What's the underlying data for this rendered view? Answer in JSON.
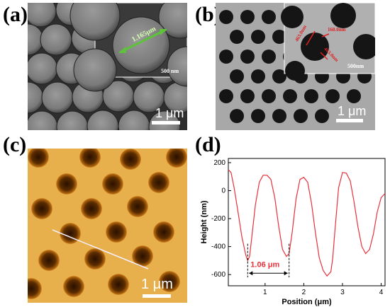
{
  "panels": {
    "a": {
      "letter": "(a)",
      "scalebar": "1 μm",
      "inset_scalebar": "500 nm",
      "diameter_label": "1.165μm"
    },
    "b": {
      "letter": "(b)",
      "scalebar": "1 μm",
      "inset_scalebar": "500nm",
      "hole_label_1": "463.0nm",
      "hole_label_2": "160.0nm",
      "hole_label_3": "463.0nm"
    },
    "c": {
      "letter": "(c)",
      "scalebar": "1 μm"
    },
    "d": {
      "letter": "(d)",
      "annotation": "1.06 μm"
    }
  },
  "colors": {
    "profile_line": "#e8303a",
    "annotation": "#e8303a",
    "afm_dark": "#3a1a00",
    "afm_light": "#f0c060"
  },
  "chart_data": {
    "type": "line",
    "xlabel": "Position (μm)",
    "ylabel": "Height (nm)",
    "xlim": [
      0.05,
      4.1
    ],
    "ylim": [
      -680,
      230
    ],
    "xticks": [
      1,
      2,
      3,
      4
    ],
    "xtick_labels": [
      "1",
      "2",
      "3",
      "4"
    ],
    "yticks": [
      200,
      0,
      -200,
      -400,
      -600
    ],
    "ytick_labels": [
      "200",
      "0",
      "-200",
      "-400",
      "-600"
    ],
    "x": [
      0.05,
      0.12,
      0.2,
      0.3,
      0.4,
      0.5,
      0.55,
      0.6,
      0.65,
      0.75,
      0.85,
      0.95,
      1.05,
      1.15,
      1.25,
      1.35,
      1.45,
      1.55,
      1.62,
      1.7,
      1.8,
      1.9,
      2.0,
      2.1,
      2.2,
      2.3,
      2.4,
      2.5,
      2.6,
      2.7,
      2.75,
      2.8,
      2.9,
      3.0,
      3.1,
      3.2,
      3.3,
      3.4,
      3.5,
      3.6,
      3.7,
      3.8,
      3.9,
      4.0,
      4.1
    ],
    "y": [
      150,
      130,
      20,
      -150,
      -330,
      -460,
      -500,
      -470,
      -350,
      -100,
      60,
      110,
      110,
      80,
      -50,
      -250,
      -420,
      -470,
      -450,
      -300,
      -60,
      80,
      95,
      60,
      -90,
      -300,
      -480,
      -570,
      -610,
      -580,
      -480,
      -300,
      20,
      130,
      125,
      70,
      -80,
      -260,
      -400,
      -450,
      -420,
      -310,
      -150,
      -50,
      -20
    ]
  }
}
